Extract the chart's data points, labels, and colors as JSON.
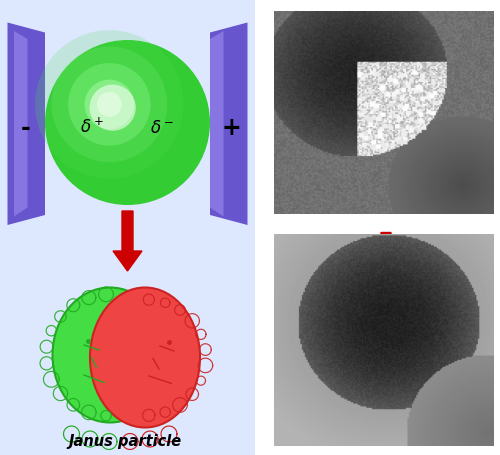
{
  "background_color": "#ffffff",
  "electrode_color": "#6655cc",
  "electrode_highlight": "#9988ee",
  "sphere_green": "#33cc33",
  "sphere_highlight_colors": [
    "#55dd55",
    "#77ee77",
    "#99ff99",
    "#bbffbb",
    "#ddffdd"
  ],
  "sphere_highlight_alphas": [
    0.2,
    0.25,
    0.3,
    0.4,
    0.55
  ],
  "arrow_color": "#cc0000",
  "janus_green": "#44dd44",
  "janus_green_edge": "#22aa22",
  "janus_red": "#ee4444",
  "janus_red_edge": "#cc2222",
  "janus_label": "Janus particle",
  "left_bg": "#dde8ff",
  "delta_plus": "$\\delta^+$",
  "delta_minus": "$\\delta^-$",
  "electrode_minus": "-",
  "electrode_plus": "+",
  "layout": {
    "fig_width": 5.0,
    "fig_height": 4.55,
    "dpi": 100
  }
}
